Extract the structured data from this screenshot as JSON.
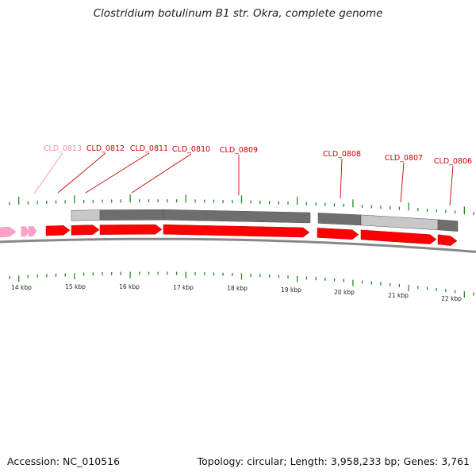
{
  "title": "Clostridium botulinum B1 str. Okra, complete genome",
  "footer": {
    "accession_text": "Accession: NC_010516",
    "stats_text": "Topology: circular; Length: 3,958,233 bp; Genes: 3,761"
  },
  "colors": {
    "gene_red": "#ff0000",
    "gene_label_red": "#cc0000",
    "gene_pink": "#ffa0c8",
    "gene_label_pink": "#f08cb4",
    "tick_green": "#228b22",
    "feature_dark": "#6e6e6e",
    "feature_light": "#c8c8c8",
    "backbone": "#888888"
  },
  "scale": {
    "unit": "kbp",
    "labels": [
      "14 kbp",
      "15 kbp",
      "16 kbp",
      "17 kbp",
      "18 kbp",
      "19 kbp",
      "20 kbp",
      "21 kbp",
      "22 kbp"
    ]
  },
  "genes": [
    {
      "id": "CLD_0813",
      "color": "pink"
    },
    {
      "id": "CLD_0812",
      "color": "red"
    },
    {
      "id": "CLD_0811",
      "color": "red"
    },
    {
      "id": "CLD_0810",
      "color": "red"
    },
    {
      "id": "CLD_0809",
      "color": "red"
    },
    {
      "id": "CLD_0808",
      "color": "red"
    },
    {
      "id": "CLD_0807",
      "color": "red"
    },
    {
      "id": "CLD_0806",
      "color": "red"
    }
  ]
}
